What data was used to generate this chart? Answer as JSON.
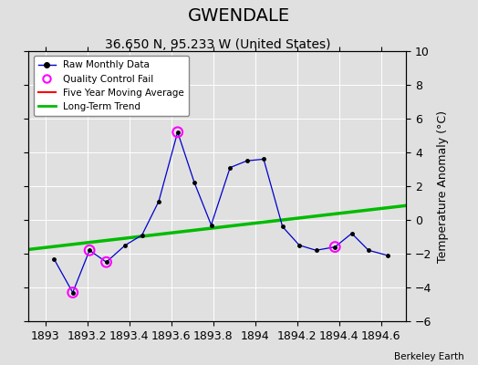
{
  "title": "GWENDALE",
  "subtitle": "36.650 N, 95.233 W (United States)",
  "ylabel": "Temperature Anomaly (°C)",
  "watermark": "Berkeley Earth",
  "xlim": [
    1892.92,
    1894.72
  ],
  "ylim": [
    -6,
    10
  ],
  "xticks": [
    1893,
    1893.2,
    1893.4,
    1893.6,
    1893.8,
    1894,
    1894.2,
    1894.4,
    1894.6
  ],
  "yticks": [
    -6,
    -4,
    -2,
    0,
    2,
    4,
    6,
    8,
    10
  ],
  "raw_x": [
    1893.04,
    1893.13,
    1893.21,
    1893.29,
    1893.38,
    1893.46,
    1893.54,
    1893.63,
    1893.71,
    1893.79,
    1893.88,
    1893.96,
    1894.04,
    1894.13,
    1894.21,
    1894.29,
    1894.38,
    1894.46,
    1894.54,
    1894.63
  ],
  "raw_y": [
    -2.3,
    -4.3,
    -1.8,
    -2.5,
    -1.5,
    -0.9,
    1.1,
    5.2,
    2.2,
    -0.3,
    3.1,
    3.5,
    3.6,
    -0.4,
    -1.5,
    -1.8,
    -1.6,
    -0.8,
    -1.8,
    -2.1
  ],
  "qc_fail_x": [
    1893.13,
    1893.21,
    1893.29,
    1893.63,
    1894.38
  ],
  "qc_fail_y": [
    -4.3,
    -1.8,
    -2.5,
    5.2,
    -1.6
  ],
  "trend_x": [
    1892.92,
    1894.72
  ],
  "trend_y": [
    -1.75,
    0.85
  ],
  "raw_color": "#0000cc",
  "raw_marker_color": "#000000",
  "qc_color": "#ff00ff",
  "trend_color": "#00bb00",
  "moving_avg_color": "#ff0000",
  "bg_color": "#e0e0e0",
  "grid_color": "#ffffff",
  "title_fontsize": 14,
  "subtitle_fontsize": 10,
  "tick_fontsize": 9,
  "ylabel_fontsize": 9
}
